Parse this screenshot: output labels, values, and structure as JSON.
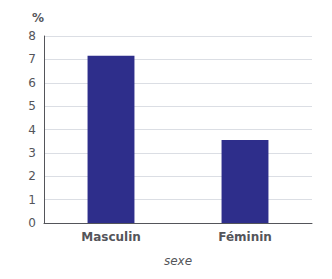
{
  "chart_data": {
    "type": "bar",
    "categories": [
      "Masculin",
      "Féminin"
    ],
    "values": [
      7.15,
      3.55
    ],
    "color": "#2E2E8B",
    "xlabel": "sexe",
    "ylabel": "%",
    "ylim": [
      0,
      8
    ],
    "yticks": [
      0,
      1,
      2,
      3,
      4,
      5,
      6,
      7,
      8
    ],
    "grid": true
  }
}
